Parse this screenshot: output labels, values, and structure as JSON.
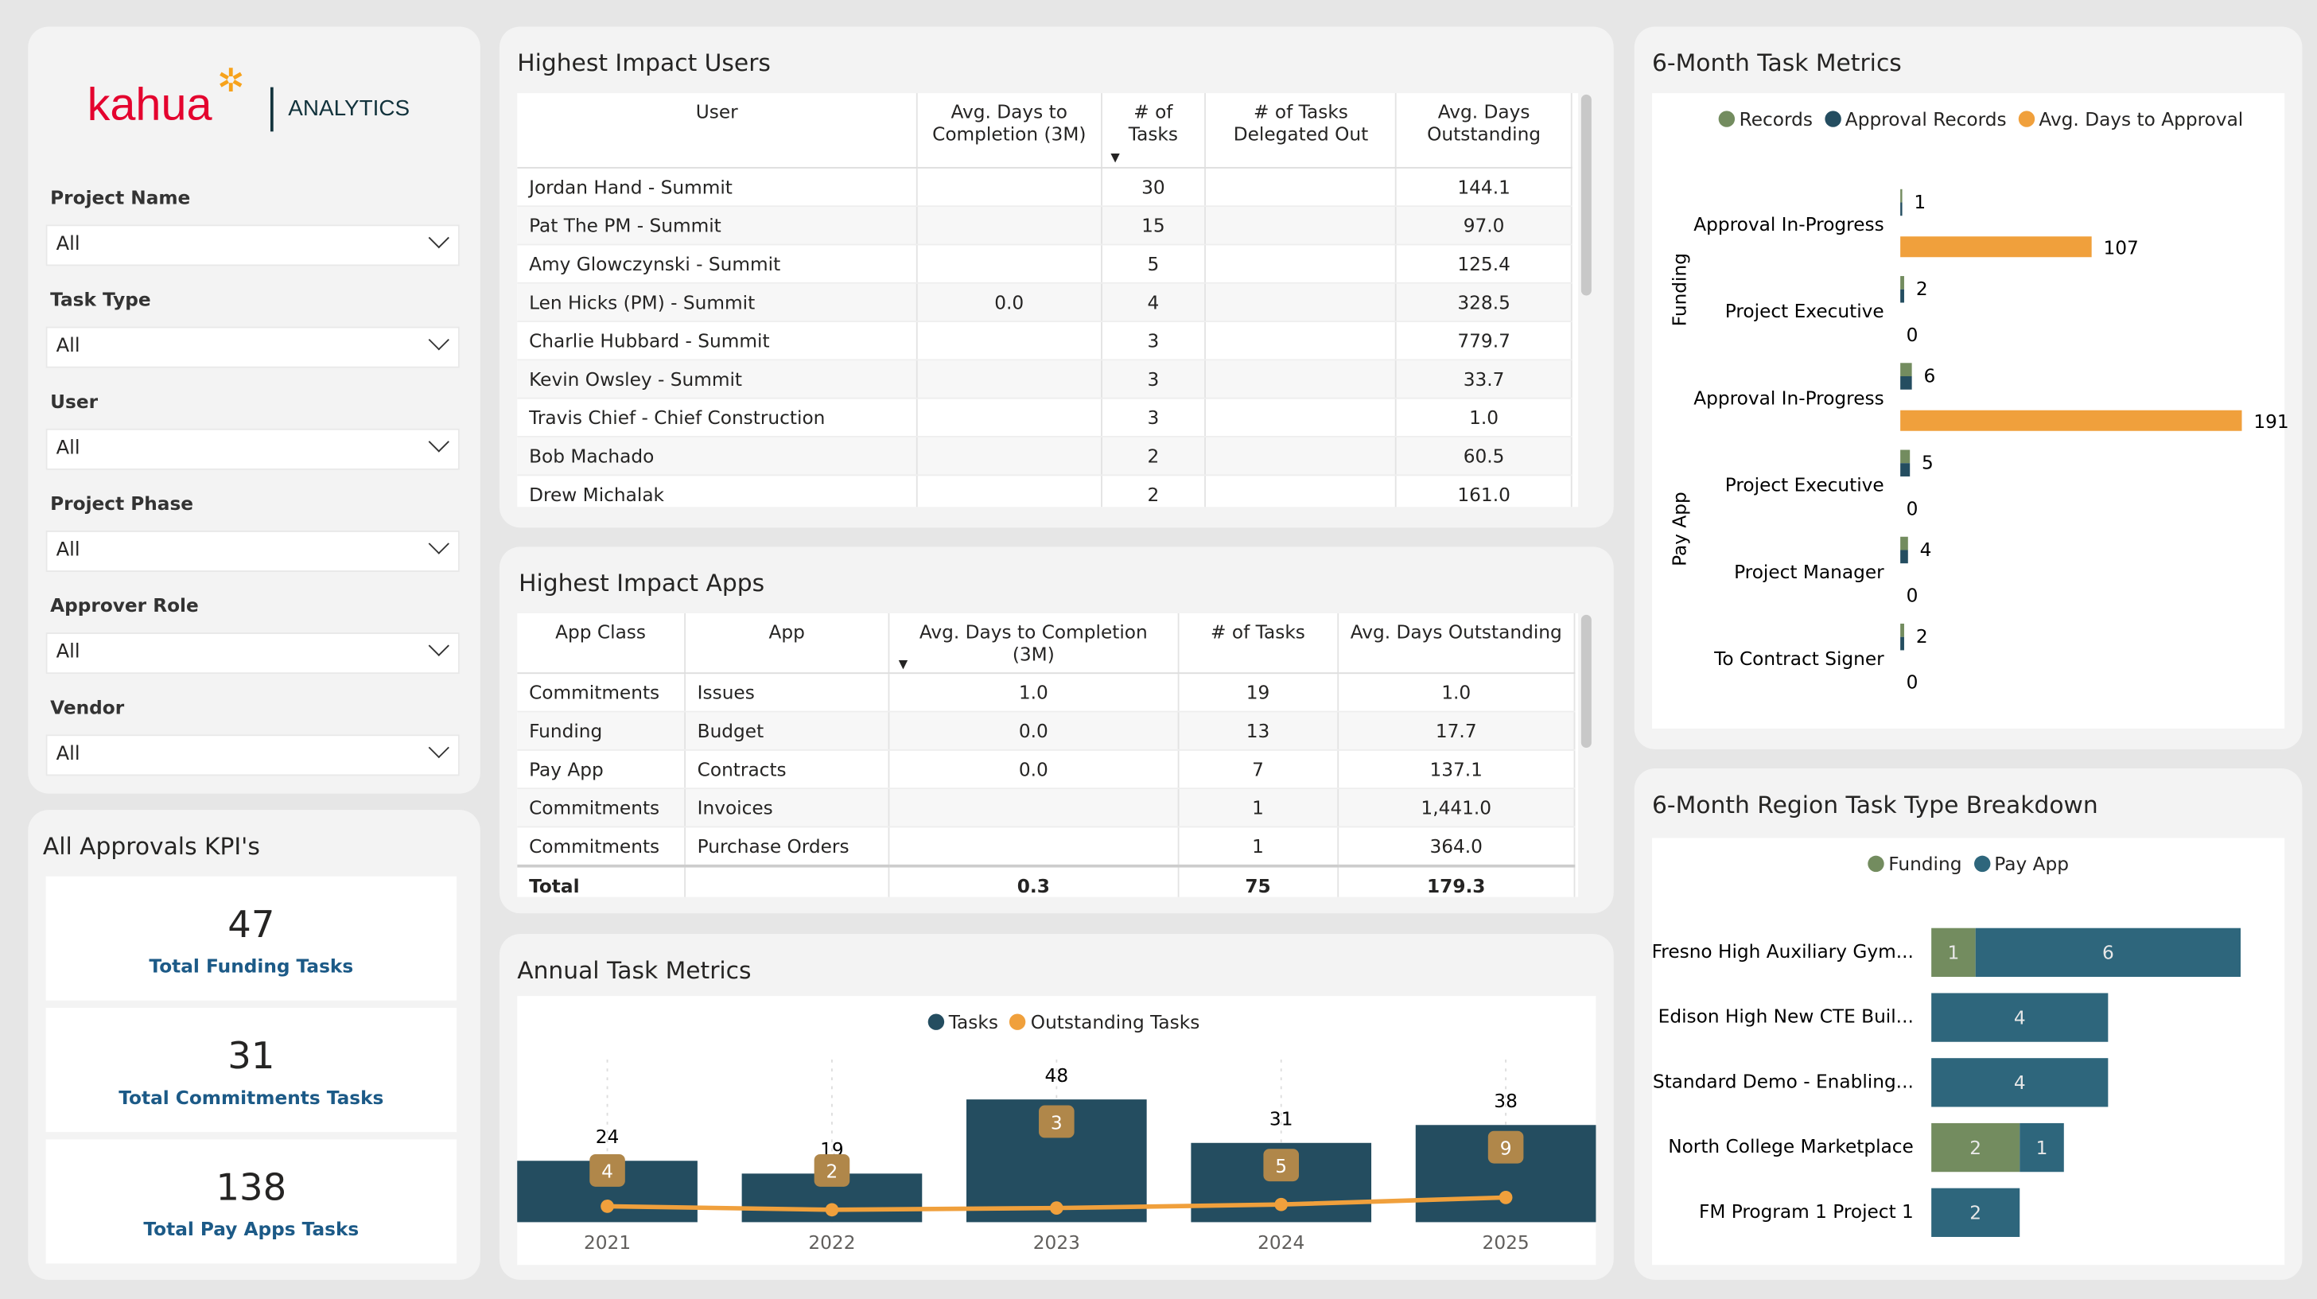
{
  "brand": {
    "logo_text": "kahua",
    "product": "ANALYTICS"
  },
  "filters": [
    {
      "label": "Project Name",
      "value": "All"
    },
    {
      "label": "Task Type",
      "value": "All"
    },
    {
      "label": "User",
      "value": "All"
    },
    {
      "label": "Project Phase",
      "value": "All"
    },
    {
      "label": "Approver Role",
      "value": "All"
    },
    {
      "label": "Vendor",
      "value": "All"
    }
  ],
  "kpis": {
    "title": "All Approvals KPI's",
    "cards": [
      {
        "value": "47",
        "label": "Total Funding Tasks"
      },
      {
        "value": "31",
        "label": "Total Commitments Tasks"
      },
      {
        "value": "138",
        "label": "Total Pay Apps Tasks"
      }
    ]
  },
  "users": {
    "title": "Highest Impact Users",
    "columns": [
      "User",
      "Avg. Days to Completion (3M)",
      "# of Tasks",
      "# of Tasks Delegated Out",
      "Avg. Days Outstanding"
    ],
    "rows": [
      [
        "Jordan Hand - Summit",
        "",
        "30",
        "",
        "144.1"
      ],
      [
        "Pat The PM - Summit",
        "",
        "15",
        "",
        "97.0"
      ],
      [
        "Amy Glowczynski - Summit",
        "",
        "5",
        "",
        "125.4"
      ],
      [
        "Len Hicks (PM) - Summit",
        "0.0",
        "4",
        "",
        "328.5"
      ],
      [
        "Charlie Hubbard - Summit",
        "",
        "3",
        "",
        "779.7"
      ],
      [
        "Kevin Owsley - Summit",
        "",
        "3",
        "",
        "33.7"
      ],
      [
        "Travis Chief - Chief Construction",
        "",
        "3",
        "",
        "1.0"
      ],
      [
        "Bob Machado",
        "",
        "2",
        "",
        "60.5"
      ],
      [
        "Drew Michalak",
        "",
        "2",
        "",
        "161.0"
      ]
    ]
  },
  "apps": {
    "title": "Highest Impact Apps",
    "columns": [
      "App Class",
      "App",
      "Avg. Days to Completion (3M)",
      "# of Tasks",
      "Avg. Days Outstanding"
    ],
    "rows": [
      [
        "Commitments",
        "Issues",
        "1.0",
        "19",
        "1.0"
      ],
      [
        "Funding",
        "Budget",
        "0.0",
        "13",
        "17.7"
      ],
      [
        "Pay App",
        "Contracts",
        "0.0",
        "7",
        "137.1"
      ],
      [
        "Commitments",
        "Invoices",
        "",
        "1",
        "1,441.0"
      ],
      [
        "Commitments",
        "Purchase Orders",
        "",
        "1",
        "364.0"
      ]
    ],
    "total": [
      "Total",
      "",
      "0.3",
      "75",
      "179.3"
    ]
  },
  "colors": {
    "green": "#738c5f",
    "navy": "#244d60",
    "orange": "#f0a03c",
    "teal": "#2e667c",
    "badge": "#b0874a"
  },
  "chart_data": [
    {
      "type": "bar",
      "title": "Annual Task Metrics",
      "categories": [
        "2021",
        "2022",
        "2023",
        "2024",
        "2025"
      ],
      "series": [
        {
          "name": "Tasks",
          "values": [
            24,
            19,
            48,
            31,
            38
          ]
        },
        {
          "name": "Outstanding Tasks",
          "type": "line",
          "values": [
            4,
            2,
            3,
            5,
            9
          ]
        }
      ]
    },
    {
      "type": "bar",
      "orientation": "horizontal",
      "title": "6-Month Task Metrics",
      "groups": [
        {
          "name": "Funding",
          "categories": [
            "Approval In-Progress",
            "Project Executive"
          ]
        },
        {
          "name": "Pay App",
          "categories": [
            "Approval In-Progress",
            "Project Executive",
            "Project Manager",
            "To Contract Signer"
          ]
        }
      ],
      "categories": [
        "Approval In-Progress",
        "Project Executive",
        "Approval In-Progress",
        "Project Executive",
        "Project Manager",
        "To Contract Signer"
      ],
      "series": [
        {
          "name": "Records",
          "values": [
            1,
            2,
            6,
            5,
            4,
            2
          ]
        },
        {
          "name": "Approval Records",
          "values": [
            1,
            2,
            6,
            5,
            4,
            2
          ]
        },
        {
          "name": "Avg. Days to Approval",
          "values": [
            107,
            0,
            191,
            0,
            0,
            0
          ]
        }
      ]
    },
    {
      "type": "bar",
      "orientation": "horizontal",
      "stacked": true,
      "title": "6-Month Region Task Type Breakdown",
      "categories": [
        "Fresno High Auxiliary Gym...",
        "Edison High New CTE Buil...",
        "Standard Demo - Enabling...",
        "North College Marketplace",
        "FM Program 1 Project 1"
      ],
      "series": [
        {
          "name": "Funding",
          "values": [
            1,
            0,
            0,
            2,
            0
          ]
        },
        {
          "name": "Pay App",
          "values": [
            6,
            4,
            4,
            1,
            2
          ]
        }
      ]
    }
  ]
}
